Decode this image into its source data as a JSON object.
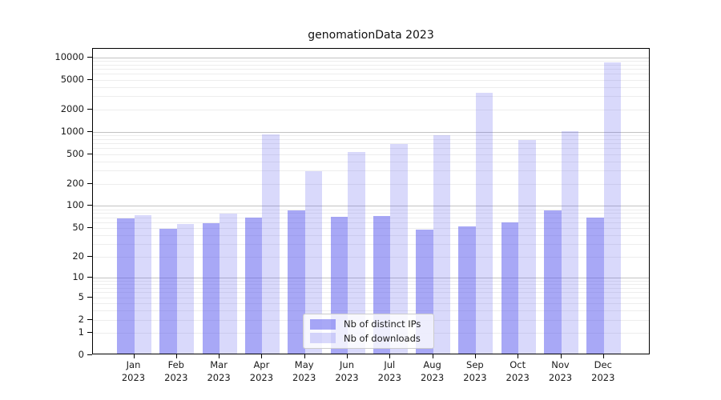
{
  "chart_data": {
    "type": "bar",
    "title": "genomationData 2023",
    "scale": "log1p",
    "grid": "horizontal",
    "year": "2023",
    "categories": [
      "Jan",
      "Feb",
      "Mar",
      "Apr",
      "May",
      "Jun",
      "Jul",
      "Aug",
      "Sep",
      "Oct",
      "Nov",
      "Dec"
    ],
    "series": [
      {
        "name": "Nb of distinct IPs",
        "color": "rgba(82,82,238,0.5)",
        "values": [
          67,
          49,
          58,
          70,
          88,
          72,
          73,
          48,
          53,
          60,
          86,
          70
        ]
      },
      {
        "name": "Nb of downloads",
        "color": "rgba(82,82,238,0.22)",
        "values": [
          75,
          57,
          79,
          930,
          297,
          540,
          690,
          905,
          3300,
          775,
          1010,
          8500
        ]
      }
    ],
    "yticks": [
      0,
      1,
      2,
      5,
      10,
      20,
      50,
      100,
      200,
      500,
      1000,
      2000,
      5000,
      10000
    ],
    "major_gridlines": [
      10,
      100,
      1000,
      10000
    ],
    "ylim": [
      0,
      13000
    ],
    "legend_position": "bottom-center",
    "colors": {
      "axis": "#000000",
      "major_grid": "#c2c2c2",
      "minor_grid": "#ededed"
    }
  }
}
